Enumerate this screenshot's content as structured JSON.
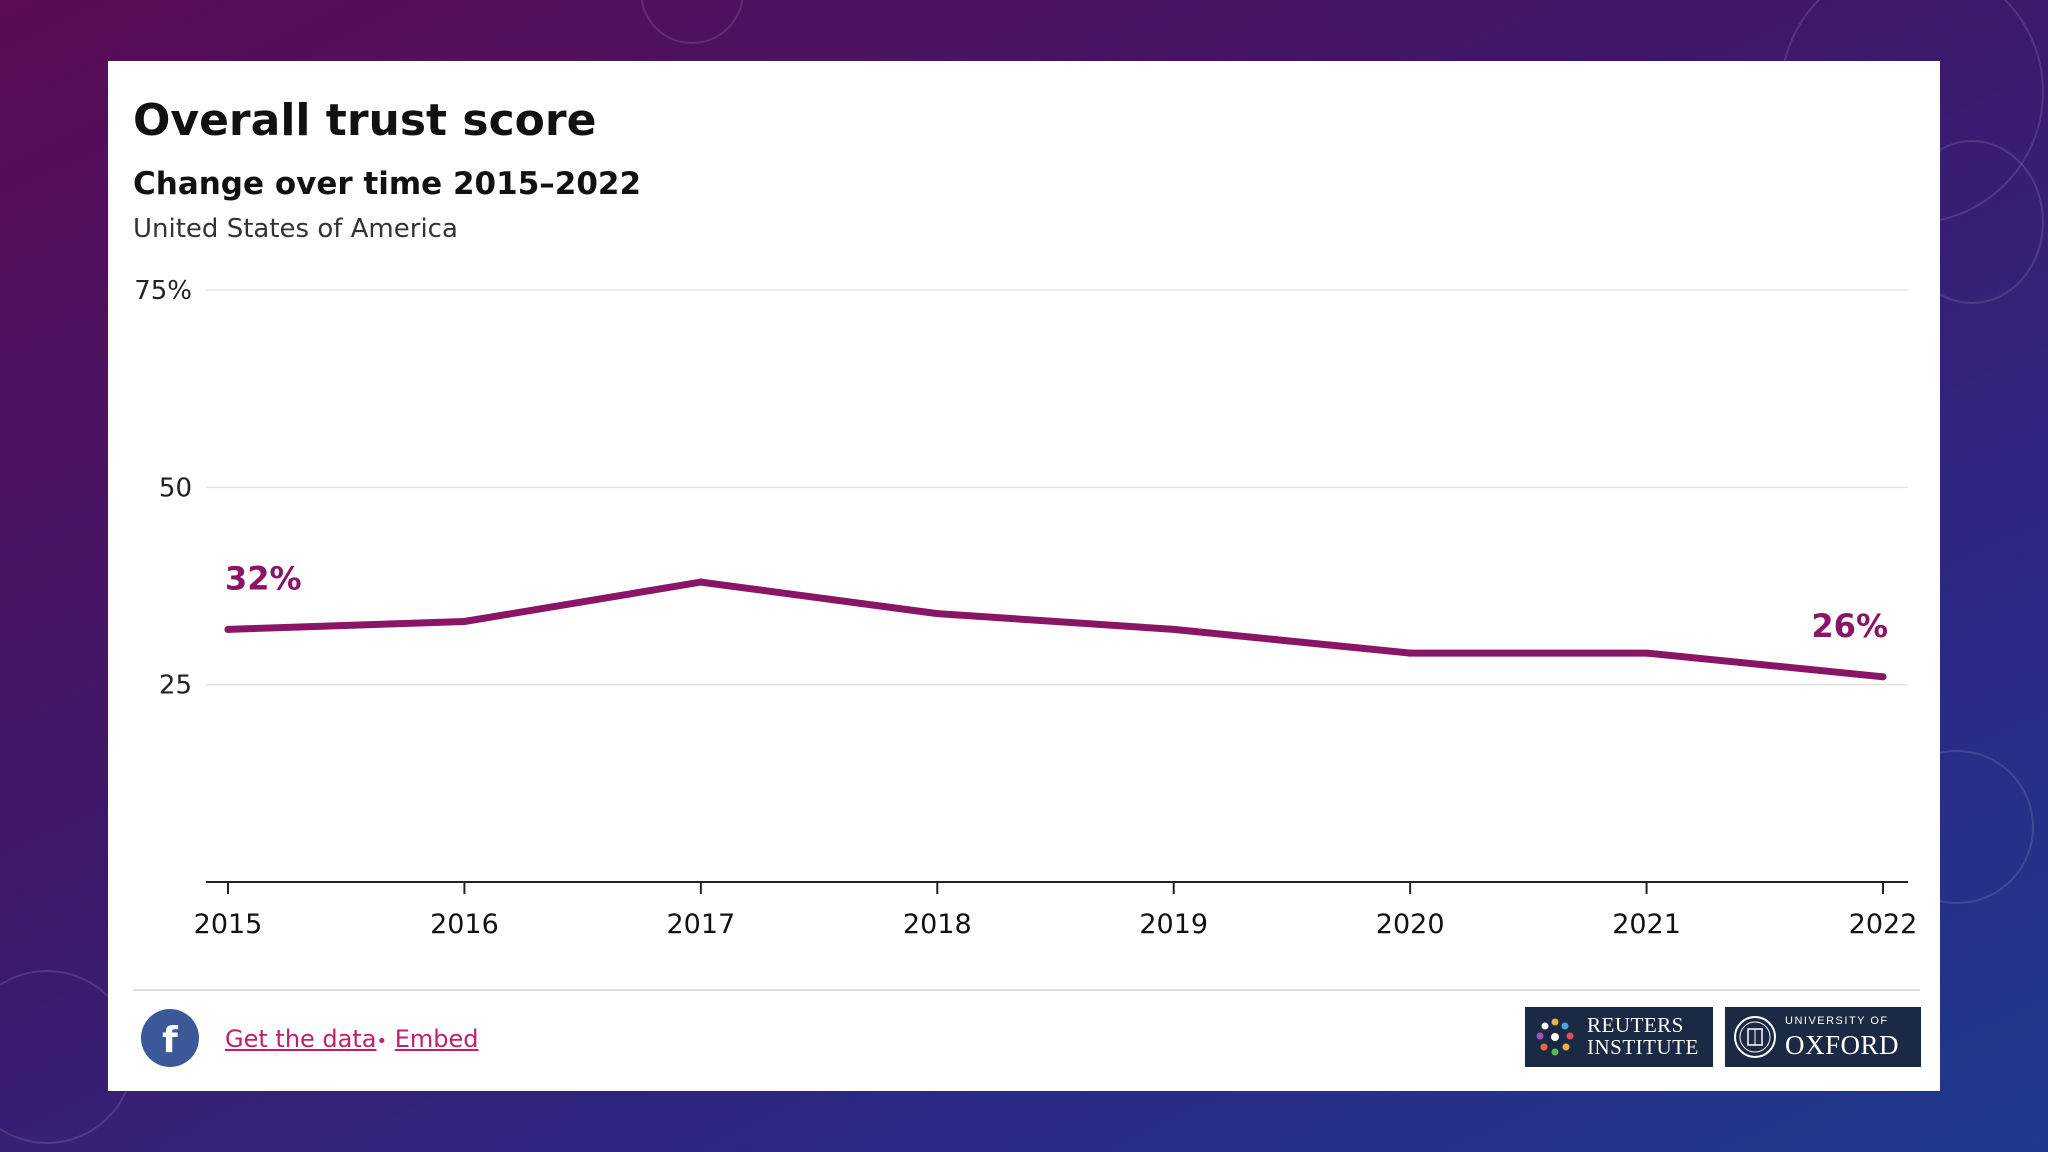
{
  "colors": {
    "line": "#8a1466",
    "label": "#8a1466",
    "link": "#c21e6d",
    "grid": "#e3e3e3",
    "axis": "#222222"
  },
  "chart_data": {
    "type": "line",
    "title": "Overall trust score",
    "subtitle": "Change over time 2015–2022",
    "country": "United States of America",
    "x": [
      2015,
      2016,
      2017,
      2018,
      2019,
      2020,
      2021,
      2022
    ],
    "x_tick_labels": [
      "2015",
      "2016",
      "2017",
      "2018",
      "2019",
      "2020",
      "2021",
      "2022"
    ],
    "series": [
      {
        "name": "Overall trust score",
        "values": [
          32,
          33,
          38,
          34,
          32,
          29,
          29,
          26
        ]
      }
    ],
    "ylim": [
      0,
      75
    ],
    "y_ticks": [
      25,
      50,
      75
    ],
    "y_tick_labels": [
      "25",
      "50",
      "75%"
    ],
    "annotations": [
      {
        "x": 2015,
        "value": 32,
        "text": "32%"
      },
      {
        "x": 2022,
        "value": 26,
        "text": "26%"
      }
    ],
    "grid": true,
    "xlabel": "",
    "ylabel": ""
  },
  "footer": {
    "social_icon": "facebook-icon",
    "get_data_label": "Get the data",
    "separator": "•",
    "embed_label": "Embed"
  },
  "logos": {
    "reuters": {
      "line1": "REUTERS",
      "line2": "INSTITUTE"
    },
    "oxford": {
      "line1": "UNIVERSITY OF",
      "line2": "OXFORD"
    }
  }
}
